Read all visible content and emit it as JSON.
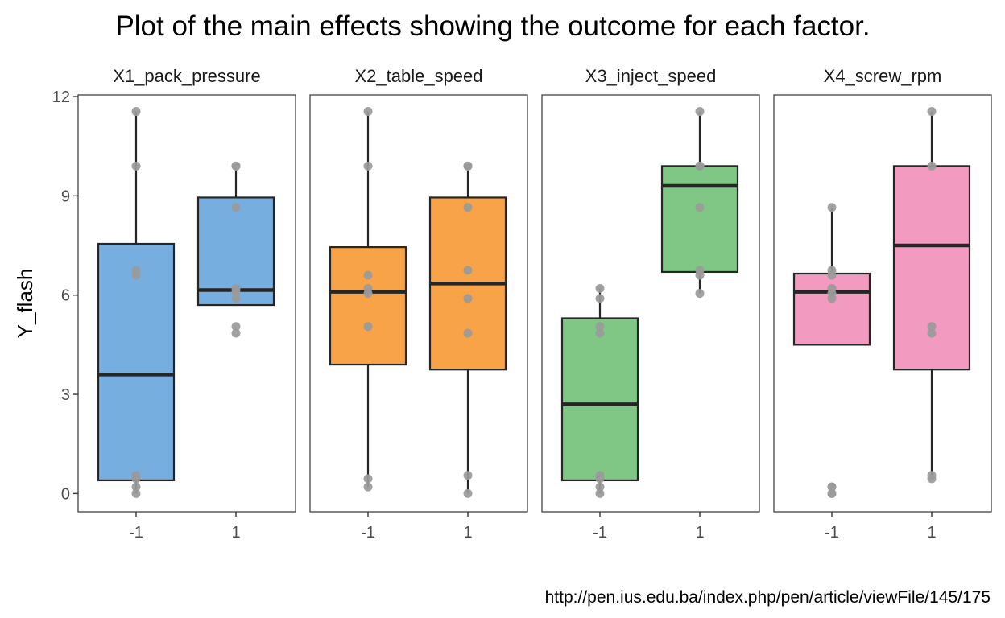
{
  "title": "Plot of the main effects showing the outcome for each factor.",
  "caption": "http://pen.ius.edu.ba/index.php/pen/article/viewFile/145/175",
  "chart_data": {
    "type": "boxplot",
    "ylabel": "Y_flash",
    "ylim": [
      -0.55,
      12.05
    ],
    "yticks": [
      0,
      3,
      6,
      9,
      12
    ],
    "grid": false,
    "legend": "none",
    "outline_color": "#262626",
    "point_color": "#9a9a9a",
    "panels": [
      {
        "name": "X1_pack_pressure",
        "color": "#77aee0",
        "categories": [
          "-1",
          "1"
        ],
        "boxes": [
          {
            "category": "-1",
            "whisker_low": 0.0,
            "q1": 0.4,
            "median": 3.6,
            "q3": 7.55,
            "whisker_high": 11.55,
            "points": [
              11.55,
              9.9,
              6.75,
              6.6,
              0.55,
              0.45,
              0.2,
              0.0
            ]
          },
          {
            "category": "1",
            "whisker_low": 5.7,
            "q1": 5.7,
            "median": 6.15,
            "q3": 8.95,
            "whisker_high": 9.9,
            "points": [
              9.9,
              9.9,
              8.65,
              6.2,
              6.1,
              5.9,
              5.05,
              4.85
            ]
          }
        ]
      },
      {
        "name": "X2_table_speed",
        "color": "#f8a347",
        "categories": [
          "-1",
          "1"
        ],
        "boxes": [
          {
            "category": "-1",
            "whisker_low": 0.2,
            "q1": 3.9,
            "median": 6.1,
            "q3": 7.45,
            "whisker_high": 11.55,
            "points": [
              11.55,
              9.9,
              6.6,
              6.2,
              6.05,
              5.05,
              0.45,
              0.2
            ]
          },
          {
            "category": "1",
            "whisker_low": 0.0,
            "q1": 3.75,
            "median": 6.35,
            "q3": 8.95,
            "whisker_high": 9.9,
            "points": [
              9.9,
              9.9,
              8.65,
              6.75,
              5.9,
              4.85,
              0.55,
              0.0
            ]
          }
        ]
      },
      {
        "name": "X3_inject_speed",
        "color": "#80c685",
        "categories": [
          "-1",
          "1"
        ],
        "boxes": [
          {
            "category": "-1",
            "whisker_low": 0.0,
            "q1": 0.4,
            "median": 2.7,
            "q3": 5.3,
            "whisker_high": 6.2,
            "points": [
              6.2,
              5.9,
              5.05,
              4.85,
              0.55,
              0.45,
              0.2,
              0.0
            ]
          },
          {
            "category": "1",
            "whisker_low": 6.05,
            "q1": 6.7,
            "median": 9.3,
            "q3": 9.9,
            "whisker_high": 11.55,
            "points": [
              11.55,
              9.9,
              9.9,
              8.65,
              6.75,
              6.6,
              6.05
            ]
          }
        ]
      },
      {
        "name": "X4_screw_rpm",
        "color": "#f29abf",
        "categories": [
          "-1",
          "1"
        ],
        "boxes": [
          {
            "category": "-1",
            "whisker_low": 4.5,
            "q1": 4.5,
            "median": 6.1,
            "q3": 6.65,
            "whisker_high": 8.65,
            "points": [
              8.65,
              6.75,
              6.6,
              6.2,
              6.05,
              5.9,
              0.2,
              0.2,
              0.0,
              0.0
            ]
          },
          {
            "category": "1",
            "whisker_low": 0.45,
            "q1": 3.75,
            "median": 7.5,
            "q3": 9.9,
            "whisker_high": 11.55,
            "points": [
              11.55,
              9.9,
              5.05,
              4.85,
              0.55,
              0.45
            ]
          }
        ]
      }
    ]
  }
}
